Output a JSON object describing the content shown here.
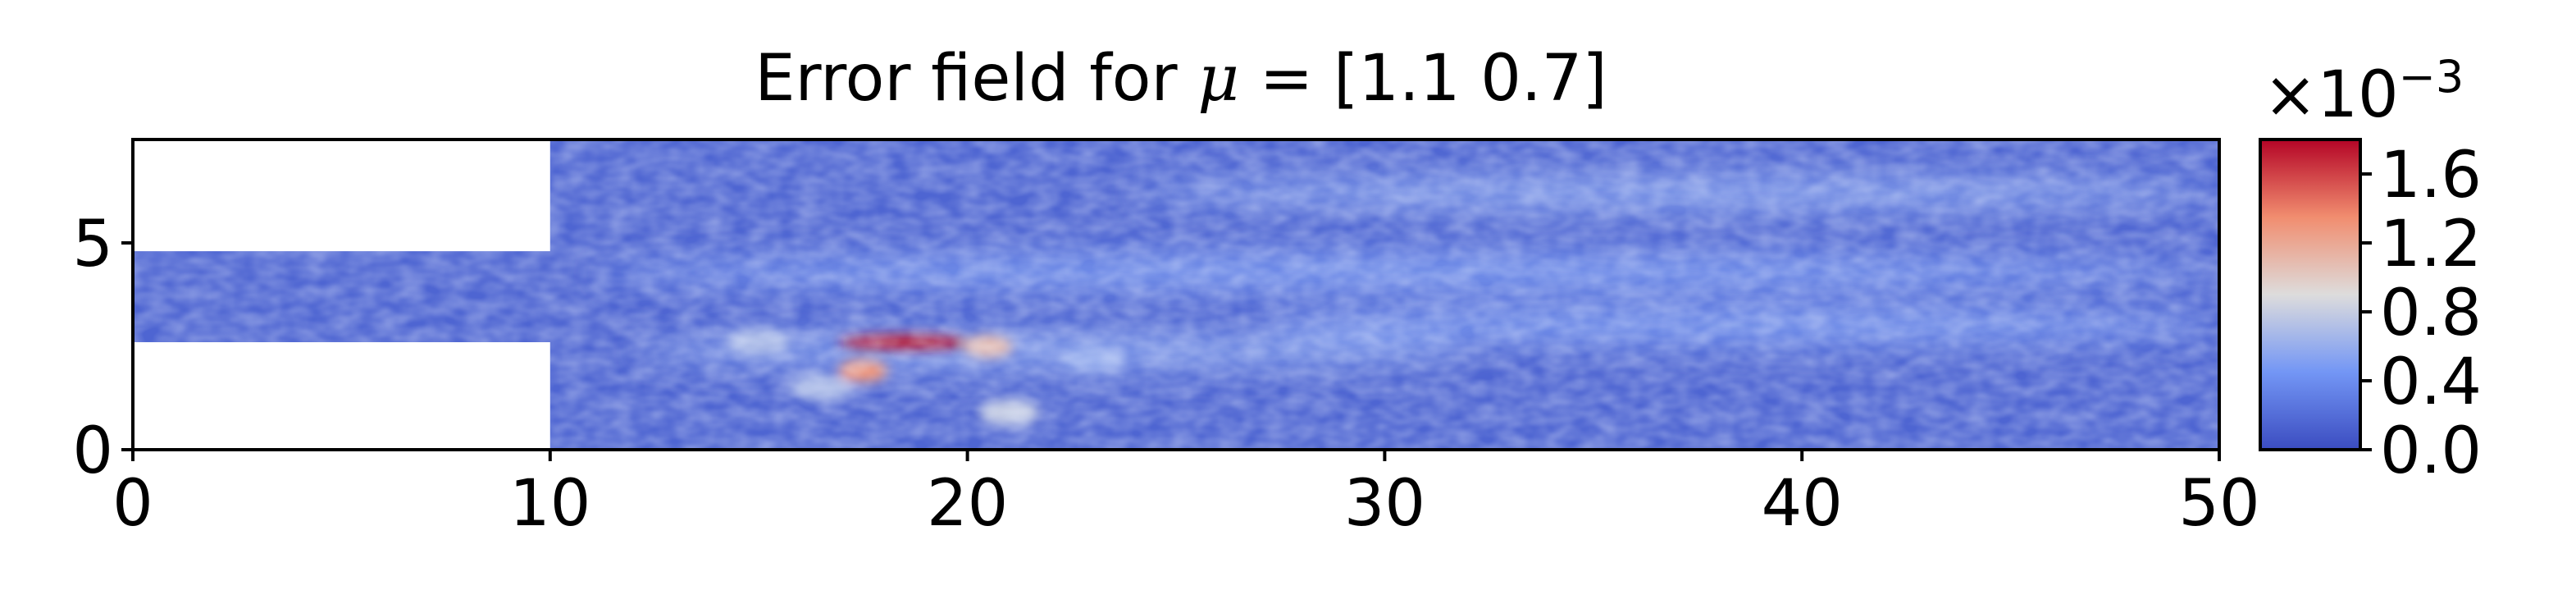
{
  "chart_data": {
    "type": "heatmap",
    "title_prefix": "Error field for ",
    "title_symbol": "μ",
    "title_suffix": " = [1.1 0.7]",
    "xlabel": "",
    "ylabel": "",
    "xlim": [
      0,
      50
    ],
    "ylim": [
      0,
      7.5
    ],
    "x_ticks": [
      0,
      10,
      20,
      30,
      40,
      50
    ],
    "y_ticks": [
      0,
      5
    ],
    "domain": {
      "inlet_channel": {
        "x": [
          0,
          10
        ],
        "y": [
          2.6,
          4.8
        ]
      },
      "main_chamber": {
        "x": [
          10,
          50
        ],
        "y": [
          0,
          7.5
        ]
      }
    },
    "colormap": "coolwarm",
    "colorbar": {
      "min": 0.0,
      "max": 1.8,
      "ticks": [
        0.0,
        0.4,
        0.8,
        1.2,
        1.6
      ],
      "tick_labels": [
        "0.0",
        "0.4",
        "0.8",
        "1.2",
        "1.6"
      ],
      "multiplier_base": "×10",
      "multiplier_exp": "−3"
    },
    "hotspots": [
      {
        "x": 18.5,
        "y": 2.6,
        "value": 1.75
      },
      {
        "x": 17.5,
        "y": 1.9,
        "value": 1.3
      },
      {
        "x": 20.5,
        "y": 2.5,
        "value": 1.1
      },
      {
        "x": 21.0,
        "y": 0.9,
        "value": 0.8
      },
      {
        "x": 15.0,
        "y": 2.6,
        "value": 0.7
      },
      {
        "x": 16.5,
        "y": 1.5,
        "value": 0.7
      },
      {
        "x": 23.0,
        "y": 2.2,
        "value": 0.6
      }
    ],
    "bands": [
      {
        "x": [
          11,
          50
        ],
        "y": 4.3,
        "value": 0.5
      },
      {
        "x": [
          24,
          50
        ],
        "y": 6.2,
        "value": 0.55
      },
      {
        "x": [
          27,
          50
        ],
        "y": 3.0,
        "value": 0.5
      },
      {
        "x": [
          12,
          32
        ],
        "y": 2.4,
        "value": 0.55
      }
    ],
    "background_value": 0.15
  }
}
